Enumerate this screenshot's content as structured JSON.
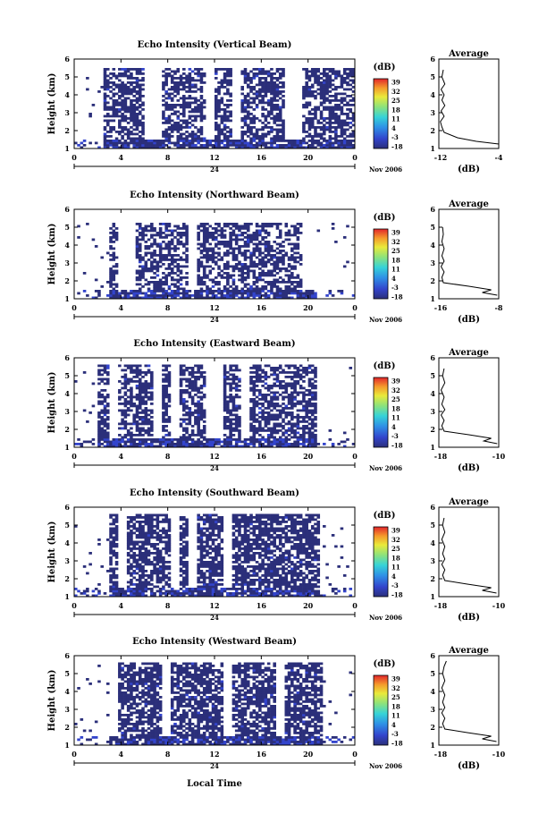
{
  "figure": {
    "date_label": "Nov 2006",
    "day_label": "24",
    "xlabel": "Local Time",
    "ylabel": "Height (km)",
    "unit_label": "(dB)",
    "average_title": "Average",
    "average_xlabel": "(dB)"
  },
  "chart_data": [
    {
      "type": "heatmap",
      "title": "Echo Intensity (Vertical Beam)",
      "x_range": [
        0,
        24
      ],
      "x_ticks": [
        "0",
        "4",
        "8",
        "12",
        "16",
        "20",
        "0"
      ],
      "y_range": [
        1,
        6
      ],
      "y_ticks": [
        "1",
        "2",
        "3",
        "4",
        "5",
        "6"
      ],
      "colorbar_ticks": [
        "-18",
        "-3",
        "4",
        "11",
        "18",
        "25",
        "32",
        "39"
      ],
      "colorbar_range": [
        -18,
        39
      ],
      "echo_start_hour": 2.5,
      "echo_end_hour": 24,
      "top_height_km": 5.4,
      "dominant_value_db": -15,
      "fill_density": 0.62,
      "seed": 11,
      "average_profile": {
        "x_range": [
          -12,
          -4
        ],
        "x_ticks": [
          "-12",
          "-4"
        ],
        "height_km": [
          1.25,
          1.4,
          1.6,
          1.9,
          2.2,
          2.5,
          2.8,
          3.1,
          3.4,
          3.7,
          4.0,
          4.3,
          4.6,
          5.0,
          5.4
        ],
        "value_db": [
          -4.0,
          -7.0,
          -9.5,
          -11.3,
          -11.6,
          -11.8,
          -11.3,
          -11.7,
          -11.2,
          -11.6,
          -11.3,
          -11.7,
          -11.2,
          -11.6,
          -11.4
        ]
      }
    },
    {
      "type": "heatmap",
      "title": "Echo Intensity (Northward Beam)",
      "x_range": [
        0,
        24
      ],
      "x_ticks": [
        "0",
        "4",
        "8",
        "12",
        "16",
        "20",
        "0"
      ],
      "y_range": [
        1,
        6
      ],
      "y_ticks": [
        "1",
        "2",
        "3",
        "4",
        "5",
        "6"
      ],
      "colorbar_ticks": [
        "-18",
        "-3",
        "4",
        "11",
        "18",
        "25",
        "32",
        "39"
      ],
      "colorbar_range": [
        -18,
        39
      ],
      "echo_start_hour": 2.8,
      "echo_end_hour": 20.5,
      "top_height_km": 5.2,
      "dominant_value_db": -15,
      "fill_density": 0.55,
      "seed": 23,
      "average_profile": {
        "x_range": [
          -16,
          -8
        ],
        "x_ticks": [
          "-16",
          "-8"
        ],
        "height_km": [
          1.2,
          1.35,
          1.5,
          1.7,
          1.9,
          2.2,
          2.5,
          2.8,
          3.1,
          3.4,
          3.8,
          4.2,
          4.6,
          5.0
        ],
        "value_db": [
          -8.2,
          -10.2,
          -9.0,
          -12.0,
          -15.4,
          -15.6,
          -15.3,
          -15.7,
          -15.3,
          -15.6,
          -15.3,
          -15.6,
          -15.4,
          -15.5
        ]
      }
    },
    {
      "type": "heatmap",
      "title": "Echo Intensity (Eastward Beam)",
      "x_range": [
        0,
        24
      ],
      "x_ticks": [
        "0",
        "4",
        "8",
        "12",
        "16",
        "20",
        "0"
      ],
      "y_range": [
        1,
        6
      ],
      "y_ticks": [
        "1",
        "2",
        "3",
        "4",
        "5",
        "6"
      ],
      "colorbar_ticks": [
        "-18",
        "-3",
        "4",
        "11",
        "18",
        "25",
        "32",
        "39"
      ],
      "colorbar_range": [
        -18,
        39
      ],
      "echo_start_hour": 2.0,
      "echo_end_hour": 20.5,
      "top_height_km": 5.5,
      "dominant_value_db": -15,
      "fill_density": 0.62,
      "seed": 37,
      "average_profile": {
        "x_range": [
          -18,
          -10
        ],
        "x_ticks": [
          "-18",
          "-10"
        ],
        "height_km": [
          1.2,
          1.35,
          1.5,
          1.7,
          1.9,
          2.2,
          2.5,
          2.8,
          3.1,
          3.4,
          3.8,
          4.2,
          4.6,
          5.0,
          5.4
        ],
        "value_db": [
          -10.2,
          -12.0,
          -11.0,
          -14.0,
          -17.3,
          -17.6,
          -17.3,
          -17.7,
          -17.2,
          -17.6,
          -17.3,
          -17.7,
          -17.2,
          -17.5,
          -17.3
        ]
      }
    },
    {
      "type": "heatmap",
      "title": "Echo Intensity (Southward Beam)",
      "x_range": [
        0,
        24
      ],
      "x_ticks": [
        "0",
        "4",
        "8",
        "12",
        "16",
        "20",
        "0"
      ],
      "y_range": [
        1,
        6
      ],
      "y_ticks": [
        "1",
        "2",
        "3",
        "4",
        "5",
        "6"
      ],
      "colorbar_ticks": [
        "-18",
        "-3",
        "4",
        "11",
        "18",
        "25",
        "32",
        "39"
      ],
      "colorbar_range": [
        -18,
        39
      ],
      "echo_start_hour": 2.8,
      "echo_end_hour": 20.8,
      "top_height_km": 5.5,
      "dominant_value_db": -15,
      "fill_density": 0.68,
      "seed": 53,
      "average_profile": {
        "x_range": [
          -18,
          -10
        ],
        "x_ticks": [
          "-18",
          "-10"
        ],
        "height_km": [
          1.2,
          1.35,
          1.5,
          1.7,
          1.9,
          2.2,
          2.5,
          2.8,
          3.1,
          3.4,
          3.8,
          4.2,
          4.6,
          5.0,
          5.4
        ],
        "value_db": [
          -10.3,
          -12.2,
          -11.0,
          -14.2,
          -17.2,
          -17.5,
          -17.2,
          -17.6,
          -17.2,
          -17.5,
          -17.2,
          -17.6,
          -17.2,
          -17.5,
          -17.3
        ]
      }
    },
    {
      "type": "heatmap",
      "title": "Echo Intensity (Westward Beam)",
      "x_range": [
        0,
        24
      ],
      "x_ticks": [
        "0",
        "4",
        "8",
        "12",
        "16",
        "20",
        "0"
      ],
      "y_range": [
        1,
        6
      ],
      "y_ticks": [
        "1",
        "2",
        "3",
        "4",
        "5",
        "6"
      ],
      "colorbar_ticks": [
        "-18",
        "-3",
        "4",
        "11",
        "18",
        "25",
        "32",
        "39"
      ],
      "colorbar_range": [
        -18,
        39
      ],
      "echo_start_hour": 2.8,
      "echo_end_hour": 21.2,
      "top_height_km": 5.6,
      "dominant_value_db": -15,
      "fill_density": 0.7,
      "seed": 71,
      "average_profile": {
        "x_range": [
          -18,
          -10
        ],
        "x_ticks": [
          "-18",
          "-10"
        ],
        "height_km": [
          1.2,
          1.35,
          1.5,
          1.7,
          1.9,
          2.2,
          2.5,
          2.8,
          3.1,
          3.4,
          3.8,
          4.2,
          4.6,
          5.0,
          5.4,
          5.7
        ],
        "value_db": [
          -10.3,
          -12.2,
          -11.0,
          -14.2,
          -17.2,
          -17.5,
          -17.2,
          -17.6,
          -17.2,
          -17.5,
          -17.2,
          -17.6,
          -17.2,
          -17.5,
          -17.3,
          -17.0
        ]
      }
    }
  ]
}
